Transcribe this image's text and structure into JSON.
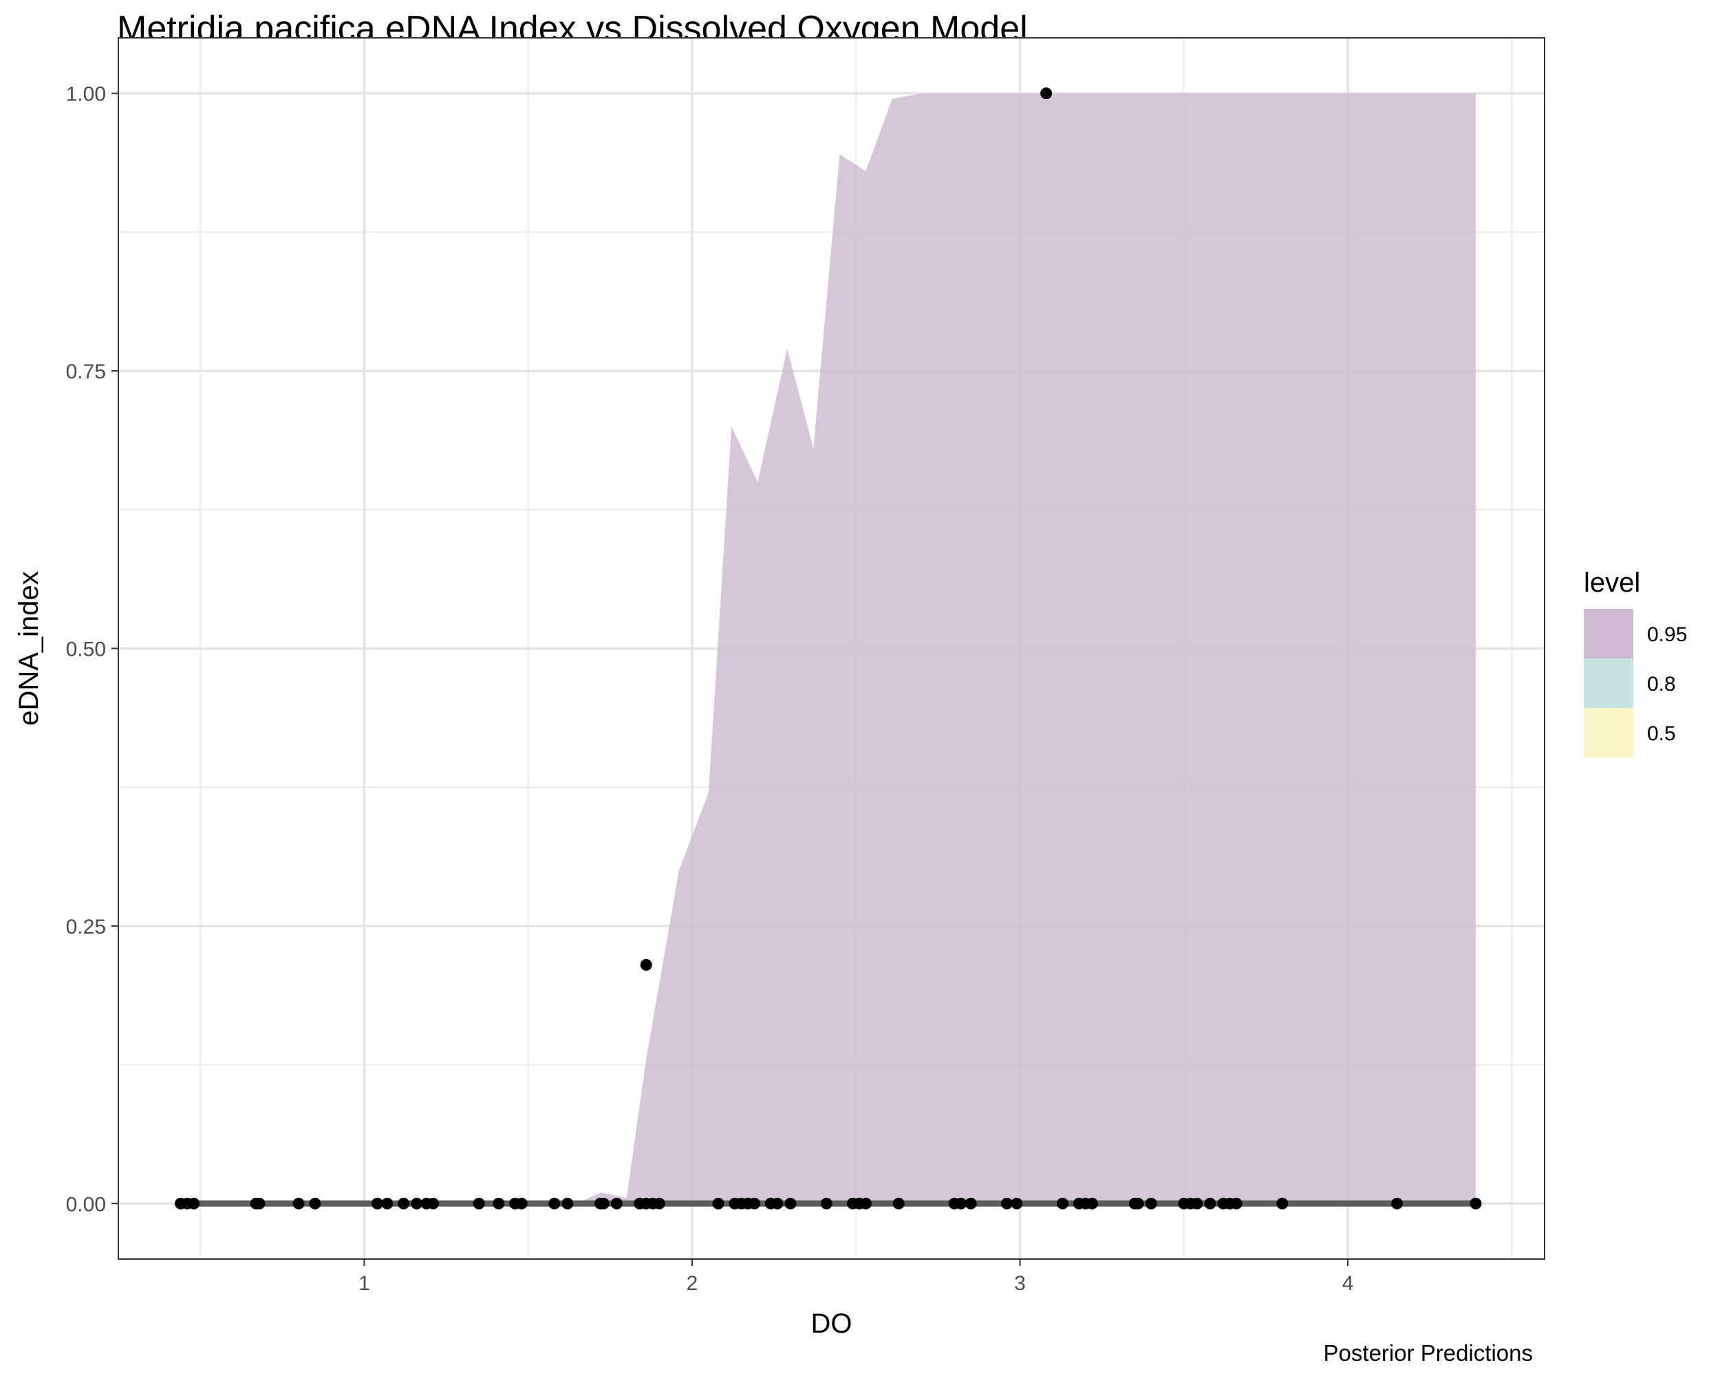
{
  "chart_data": {
    "type": "area",
    "title": "Metridia pacifica eDNA Index vs Dissolved Oxygen Model",
    "caption": "Posterior Predictions",
    "xlabel": "DO",
    "ylabel": "eDNA_index",
    "xlim": [
      0.25,
      4.6
    ],
    "ylim": [
      -0.05,
      1.05
    ],
    "x_ticks": [
      {
        "value": 1,
        "label": "1"
      },
      {
        "value": 2,
        "label": "2"
      },
      {
        "value": 3,
        "label": "3"
      },
      {
        "value": 4,
        "label": "4"
      }
    ],
    "y_ticks": [
      {
        "value": 0,
        "label": "0.00"
      },
      {
        "value": 0.25,
        "label": "0.25"
      },
      {
        "value": 0.5,
        "label": "0.50"
      },
      {
        "value": 0.75,
        "label": "0.75"
      },
      {
        "value": 1,
        "label": "1.00"
      }
    ],
    "grid": true,
    "legend": {
      "title": "level",
      "placement": "right",
      "items": [
        {
          "label": "0.95",
          "color": "#cfbcd4"
        },
        {
          "label": "0.8",
          "color": "#c8e2e1"
        },
        {
          "label": "0.5",
          "color": "#fcf6c7"
        }
      ]
    },
    "band_95": {
      "x": [
        0.44,
        1.65,
        1.72,
        1.8,
        1.86,
        1.96,
        2.05,
        2.12,
        2.2,
        2.29,
        2.37,
        2.45,
        2.53,
        2.61,
        2.7,
        2.8,
        3.0,
        3.5,
        4.0,
        4.39
      ],
      "upper": [
        0.0,
        0.0,
        0.01,
        0.005,
        0.13,
        0.3,
        0.37,
        0.7,
        0.65,
        0.77,
        0.68,
        0.945,
        0.93,
        0.995,
        1.0,
        1.0,
        1.0,
        1.0,
        1.0,
        1.0
      ],
      "lower": [
        0.0,
        0.0,
        0.0,
        0.0,
        0.0,
        0.0,
        0.0,
        0.0,
        0.0,
        0.0,
        0.0,
        0.0,
        0.0,
        0.0,
        0.0,
        0.0,
        0.0,
        0.0,
        0.0,
        0.0
      ]
    },
    "median_line": {
      "x": [
        0.44,
        4.39
      ],
      "y": [
        0.0,
        0.0
      ]
    },
    "points": {
      "x": [
        0.44,
        0.46,
        0.48,
        0.67,
        0.68,
        0.8,
        0.85,
        1.04,
        1.07,
        1.12,
        1.16,
        1.19,
        1.21,
        1.35,
        1.41,
        1.46,
        1.48,
        1.58,
        1.62,
        1.72,
        1.73,
        1.77,
        1.84,
        1.86,
        1.88,
        1.9,
        2.08,
        2.13,
        2.15,
        2.17,
        2.19,
        2.24,
        2.26,
        2.3,
        2.41,
        2.49,
        2.51,
        2.53,
        2.63,
        2.8,
        2.82,
        2.85,
        2.96,
        2.99,
        3.13,
        3.18,
        3.2,
        3.22,
        3.35,
        3.36,
        3.4,
        3.5,
        3.52,
        3.54,
        3.58,
        3.62,
        3.64,
        3.66,
        3.8,
        4.15,
        4.39,
        1.86,
        3.08
      ],
      "y": [
        0,
        0,
        0,
        0,
        0,
        0,
        0,
        0,
        0,
        0,
        0,
        0,
        0,
        0,
        0,
        0,
        0,
        0,
        0,
        0,
        0,
        0,
        0,
        0,
        0,
        0,
        0,
        0,
        0,
        0,
        0,
        0,
        0,
        0,
        0,
        0,
        0,
        0,
        0,
        0,
        0,
        0,
        0,
        0,
        0,
        0,
        0,
        0,
        0,
        0,
        0,
        0,
        0,
        0,
        0,
        0,
        0,
        0,
        0,
        0,
        0,
        0.215,
        1.0
      ]
    }
  }
}
